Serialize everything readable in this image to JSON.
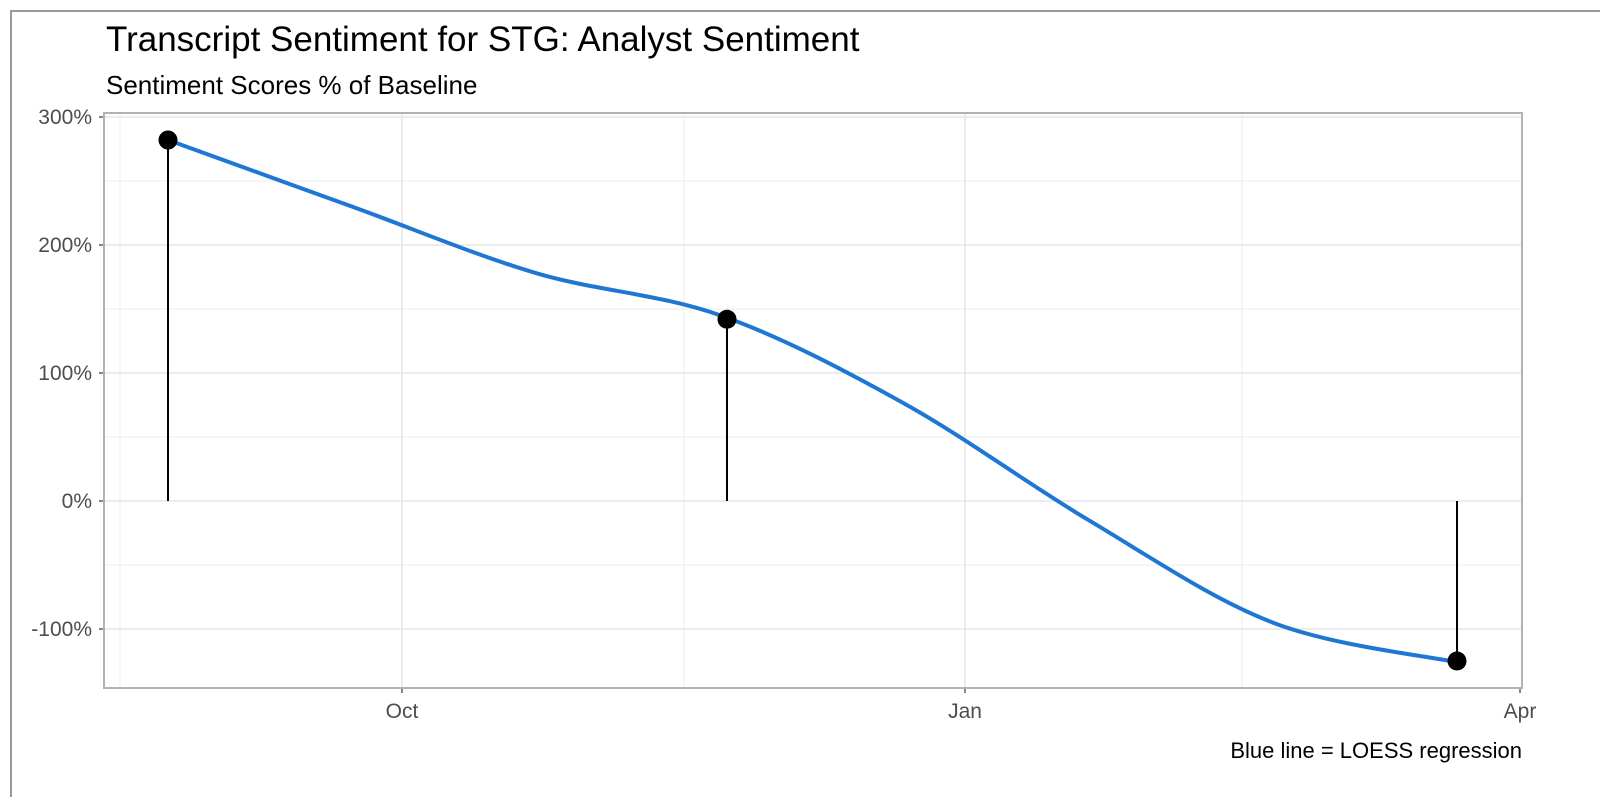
{
  "chart_data": {
    "type": "line",
    "title": "Transcript Sentiment for STG: Analyst Sentiment",
    "subtitle": "Sentiment Scores % of Baseline",
    "caption": "Blue line = LOESS regression",
    "xlabel": "",
    "ylabel": "",
    "x_ticks": [
      "Oct",
      "Jan",
      "Apr"
    ],
    "y_ticks": [
      "300%",
      "200%",
      "100%",
      "0%",
      "-100%"
    ],
    "y_tick_values": [
      300,
      200,
      100,
      0,
      -100
    ],
    "ylim": [
      -145,
      302
    ],
    "points": [
      {
        "x": "Aug 2020",
        "value": 282
      },
      {
        "x": "Nov 2020",
        "value": 142
      },
      {
        "x": "Mar 2021",
        "value": -125
      }
    ],
    "loess": [
      282,
      230,
      178,
      145,
      76,
      -15,
      -95,
      -126
    ],
    "colors": {
      "loess": "#1f77d4",
      "points": "#000000",
      "grid": "#e6e6e6",
      "panel_border": "#b3b3b3"
    }
  }
}
